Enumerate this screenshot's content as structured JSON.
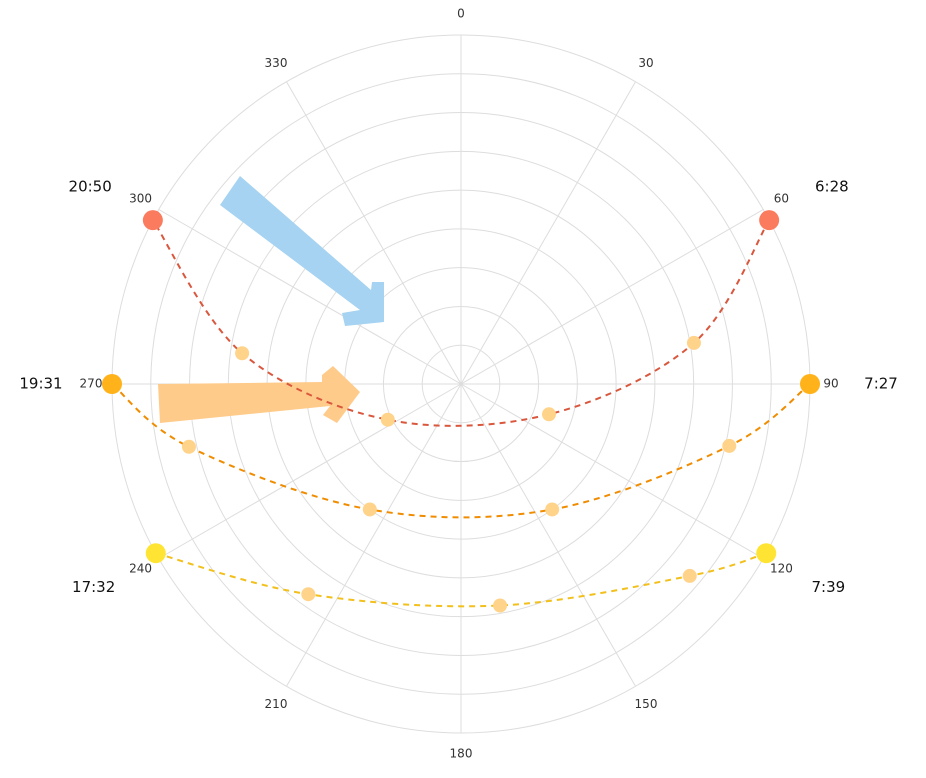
{
  "chart_data": {
    "type": "polar",
    "rlim": [
      0,
      90
    ],
    "rticks": [
      0,
      10,
      20,
      30,
      40,
      50,
      60,
      70,
      80,
      90
    ],
    "angle_ticks": [
      0,
      30,
      60,
      90,
      120,
      150,
      180,
      210,
      240,
      270,
      300,
      330
    ],
    "grid": true,
    "point_color": "#ffd38a",
    "series": [
      {
        "color": "#d9573d",
        "end_color": "#fa7b5e",
        "start_label": "6:28",
        "end_label": "20:50",
        "theta": [
          62,
          80,
          109,
          244,
          278,
          298
        ],
        "r": [
          90,
          61,
          24,
          21,
          57,
          90
        ]
      },
      {
        "color": "#f08c00",
        "end_color": "#ffb21a",
        "start_label": "7:27",
        "end_label": "19:31",
        "theta": [
          90,
          103,
          144,
          216,
          257,
          270
        ],
        "r": [
          90,
          71,
          40,
          40,
          72,
          90
        ]
      },
      {
        "color": "#f2c01c",
        "end_color": "#ffe433",
        "start_label": "7:39",
        "end_label": "17:32",
        "theta": [
          119,
          130,
          170,
          216,
          241
        ],
        "r": [
          90,
          77,
          58,
          67,
          90
        ]
      }
    ]
  }
}
